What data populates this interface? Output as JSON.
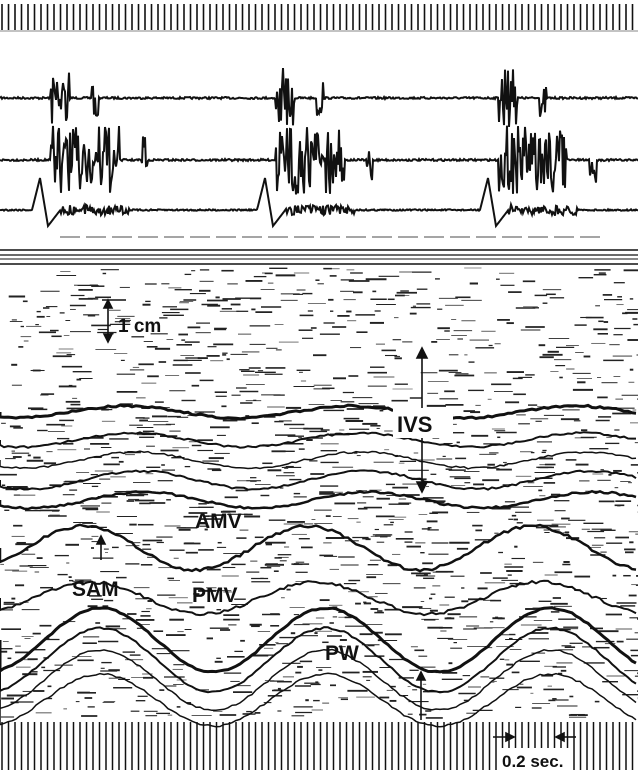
{
  "labels": {
    "scale_cm": "1 cm",
    "ivs": "IVS",
    "amv": "AMV",
    "sam": "SAM",
    "pmv": "PMV",
    "pw": "PW",
    "time_scale": "0.2 sec."
  },
  "colors": {
    "ink": "#111111",
    "paper": "#ffffff"
  }
}
